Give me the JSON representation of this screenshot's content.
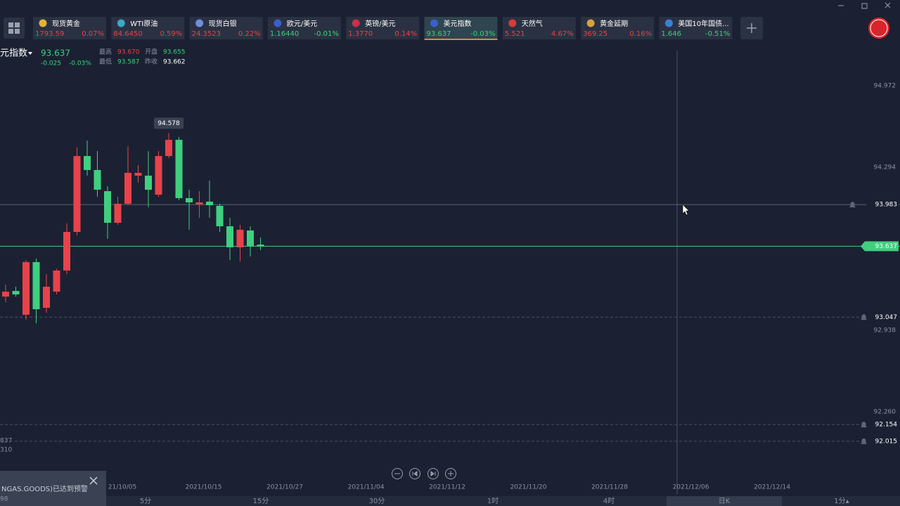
{
  "tickers": [
    {
      "name": "现货黄金",
      "price": "1793.59",
      "change": "0.07%"
    },
    {
      "name": "WTI原油",
      "price": "84.6450",
      "change": "0.59%"
    },
    {
      "name": "现货白银",
      "price": "24.3523",
      "change": "0.22%"
    },
    {
      "name": "欧元/美元",
      "price": "1.16440",
      "change": "-0.01%"
    },
    {
      "name": "英镑/美元",
      "price": "1.3770",
      "change": "0.14%"
    },
    {
      "name": "美元指数",
      "price": "93.637",
      "change": "-0.03%"
    },
    {
      "name": "天然气",
      "price": "5.521",
      "change": "4.67%"
    },
    {
      "name": "黄金延期",
      "price": "369.25",
      "change": "0.16%"
    },
    {
      "name": "美国10年国债...",
      "price": "1.646",
      "change": "-0.51%"
    }
  ],
  "header": {
    "title": "元指数",
    "price": "93.637",
    "change": "-0.025",
    "change_pct": "-0.03%",
    "stats": [
      {
        "label": "最高",
        "value": "93.670"
      },
      {
        "label": "开盘",
        "value": "93.655"
      },
      {
        "label": "最低",
        "value": "93.587"
      },
      {
        "label": "昨收",
        "value": "93.662"
      }
    ]
  },
  "left_axis_fragments": [
    "837",
    "310"
  ],
  "notification": {
    "text": "NGAS.GOODS)已达到预警",
    "sub": "98"
  },
  "timeframes": [
    "5分",
    "15分",
    "30分",
    "1时",
    "4时",
    "日K",
    "1分▴"
  ],
  "chart_data": {
    "type": "candlestick",
    "up_color": "#e8424a",
    "down_color": "#3fcf7f",
    "open": [
      93.218,
      93.265,
      93.067,
      93.505,
      93.125,
      93.259,
      93.435,
      93.756,
      94.387,
      94.271,
      94.095,
      93.832,
      93.99,
      94.224,
      94.224,
      94.066,
      94.387,
      94.522,
      94.037,
      93.984,
      94.008,
      93.973,
      93.803,
      93.628,
      93.768,
      93.651
    ],
    "high": [
      93.318,
      93.3,
      93.522,
      93.534,
      93.406,
      93.45,
      93.826,
      94.458,
      94.516,
      94.428,
      94.136,
      94.048,
      94.469,
      94.312,
      94.428,
      94.428,
      94.578,
      94.545,
      94.107,
      94.095,
      94.183,
      93.99,
      93.873,
      93.815,
      93.803,
      93.709
    ],
    "low": [
      93.172,
      93.218,
      93.026,
      92.996,
      93.084,
      93.236,
      93.406,
      93.727,
      94.224,
      94.048,
      93.698,
      93.815,
      93.978,
      94.165,
      93.961,
      94.048,
      94.37,
      94.019,
      93.774,
      93.873,
      93.873,
      93.756,
      93.522,
      93.511,
      93.552,
      93.604
    ],
    "close": [
      93.259,
      93.236,
      93.505,
      93.113,
      93.3,
      93.435,
      93.756,
      94.387,
      94.271,
      94.107,
      93.832,
      93.99,
      94.247,
      94.247,
      94.107,
      94.387,
      94.522,
      94.037,
      94.002,
      94.002,
      93.978,
      93.803,
      93.628,
      93.774,
      93.639,
      93.637
    ],
    "x_labels": [
      "21/10/05",
      "2021/10/15",
      "2021/10/27",
      "2021/11/04",
      "2021/11/12",
      "2021/11/20",
      "2021/11/28",
      "2021/12/06",
      "2021/12/14"
    ],
    "ylim": [
      91.652,
      95.334
    ],
    "yticks": [
      94.972,
      94.294,
      92.938,
      {
        "value": 92.26,
        "label": "92.260"
      }
    ],
    "price_lines": [
      {
        "value": 93.983,
        "style": "solid",
        "color": "#5a6272"
      },
      {
        "value": 93.637,
        "style": "solid",
        "color": "#3fcf7f"
      },
      {
        "value": 93.047,
        "style": "dashed",
        "color": "#4a5262"
      },
      {
        "value": 92.154,
        "style": "dashed",
        "color": "#4a5262"
      },
      {
        "value": 92.015,
        "style": "dashed",
        "color": "#4a5262"
      }
    ],
    "high_marker_index": 16
  }
}
